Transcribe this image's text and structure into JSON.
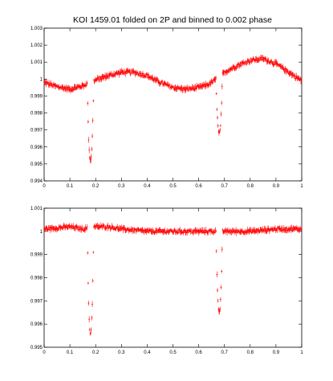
{
  "chart_data": [
    {
      "type": "scatter",
      "title": "KOI 1459.01 folded on 2P and binned to 0.002 phase",
      "xlabel": "",
      "ylabel": "",
      "xlim": [
        0,
        1
      ],
      "ylim": [
        0.994,
        1.003
      ],
      "x_ticks": [
        "0",
        "0.1",
        "0.2",
        "0.3",
        "0.4",
        "0.5",
        "0.6",
        "0.7",
        "0.8",
        "0.9",
        "1"
      ],
      "y_ticks": [
        "0.994",
        "0.995",
        "0.996",
        "0.997",
        "0.998",
        "0.999",
        "1",
        "1.001",
        "1.002",
        "1.003"
      ],
      "marker": "plus-with-errorbars",
      "color": "#ff0000",
      "grid": false,
      "baseline_knots": {
        "x": [
          0,
          0.05,
          0.1,
          0.15,
          0.21,
          0.25,
          0.3,
          0.35,
          0.4,
          0.45,
          0.5,
          0.55,
          0.6,
          0.64,
          0.66,
          0.7,
          0.75,
          0.8,
          0.85,
          0.9,
          0.95,
          1
        ],
        "y": [
          0.9998,
          0.99955,
          0.9994,
          0.9996,
          1.0,
          1.0002,
          1.0004,
          1.0004,
          1.0002,
          0.9998,
          0.9995,
          0.9994,
          0.9995,
          0.9997,
          0.9999,
          1.0004,
          1.0008,
          1.0011,
          1.0012,
          1.0009,
          1.0004,
          0.9999
        ]
      },
      "dips": [
        {
          "center": 0.18,
          "depth": 0.0046
        },
        {
          "center": 0.68,
          "depth": 0.0034
        }
      ]
    },
    {
      "type": "scatter",
      "title": "",
      "xlabel": "",
      "ylabel": "",
      "xlim": [
        0,
        1
      ],
      "ylim": [
        0.995,
        1.001
      ],
      "x_ticks": [
        "0",
        "0.1",
        "0.2",
        "0.3",
        "0.4",
        "0.5",
        "0.6",
        "0.7",
        "0.8",
        "0.9",
        "1"
      ],
      "y_ticks": [
        "0.995",
        "0.996",
        "0.997",
        "0.998",
        "0.999",
        "1",
        "1.001"
      ],
      "marker": "plus-with-errorbars",
      "color": "#ff0000",
      "grid": false,
      "baseline_knots": {
        "x": [
          0,
          0.1,
          0.15,
          0.2,
          0.25,
          0.3,
          0.4,
          0.5,
          0.6,
          0.7,
          0.8,
          0.9,
          1
        ],
        "y": [
          1.0001,
          1.0002,
          1.0001,
          1.0002,
          1.0002,
          1.0001,
          1.0,
          1.0,
          1.0,
          1.0,
          1.0,
          1.0001,
          1.0001
        ]
      },
      "dips": [
        {
          "center": 0.18,
          "depth": 0.0046
        },
        {
          "center": 0.68,
          "depth": 0.0035
        }
      ]
    }
  ]
}
